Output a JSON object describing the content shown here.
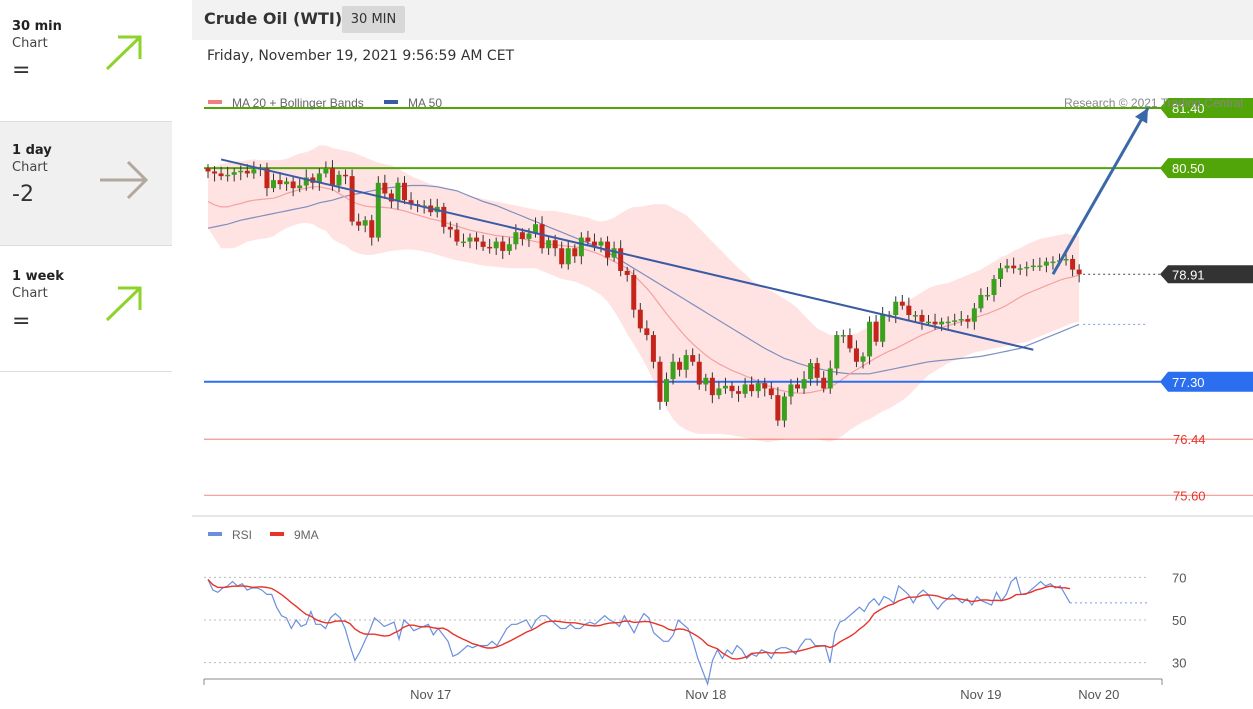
{
  "sidebar": {
    "items": [
      {
        "name": "30 min",
        "sub": "Chart",
        "score": "=",
        "direction": "up",
        "icon": "arrow-up-right-icon",
        "color": "#8ed32a"
      },
      {
        "name": "1 day",
        "sub": "Chart",
        "score": "-2",
        "direction": "flat",
        "icon": "arrow-right-icon",
        "color": "#b3a89e"
      },
      {
        "name": "1 week",
        "sub": "Chart",
        "score": "=",
        "direction": "up",
        "icon": "arrow-up-right-icon",
        "color": "#8ed32a"
      }
    ]
  },
  "header": {
    "title": "Crude Oil (WTI)",
    "interval": "30 MIN"
  },
  "date": "Friday, November 19, 2021 9:56:59 AM CET",
  "chart_data": {
    "type": "candlestick",
    "legend": [
      {
        "label": "MA 20 + Bollinger Bands",
        "color": "#f08080"
      },
      {
        "label": "MA 50",
        "color": "#3b5ba5"
      }
    ],
    "credit": "Research © 2021 Trading Central",
    "price_range": [
      75.35,
      81.7
    ],
    "levels": [
      {
        "value": 81.4,
        "label": "81.40",
        "kind": "resistance",
        "color": "#52a508"
      },
      {
        "value": 80.5,
        "label": "80.50",
        "kind": "resistance",
        "color": "#52a508"
      },
      {
        "value": 78.91,
        "label": "78.91",
        "kind": "last",
        "color": "#333333"
      },
      {
        "value": 77.3,
        "label": "77.30",
        "kind": "pivot",
        "color": "#2b6ff0"
      },
      {
        "value": 76.44,
        "label": "76.44",
        "kind": "support",
        "color": "#e8332a"
      },
      {
        "value": 75.6,
        "label": "75.60",
        "kind": "support",
        "color": "#e8332a"
      }
    ],
    "closes": [
      80.45,
      80.42,
      80.38,
      80.4,
      80.44,
      80.46,
      80.42,
      80.48,
      80.5,
      80.2,
      80.32,
      80.26,
      80.3,
      80.2,
      80.24,
      80.36,
      80.28,
      80.42,
      80.5,
      80.24,
      80.4,
      80.38,
      79.7,
      79.64,
      79.72,
      79.46,
      80.28,
      80.12,
      80.0,
      80.28,
      80.02,
      79.96,
      79.94,
      79.94,
      79.84,
      79.92,
      79.62,
      79.58,
      79.4,
      79.4,
      79.46,
      79.4,
      79.32,
      79.3,
      79.4,
      79.26,
      79.36,
      79.54,
      79.44,
      79.52,
      79.66,
      79.3,
      79.42,
      79.3,
      79.06,
      79.3,
      79.18,
      79.46,
      79.4,
      79.34,
      79.4,
      79.16,
      79.3,
      78.96,
      78.9,
      78.38,
      78.1,
      78.0,
      77.6,
      77.0,
      77.34,
      77.6,
      77.48,
      77.7,
      77.6,
      77.26,
      77.36,
      77.1,
      77.2,
      77.24,
      77.16,
      77.12,
      77.26,
      77.16,
      77.28,
      77.2,
      77.1,
      76.72,
      77.08,
      77.26,
      77.2,
      77.34,
      77.58,
      77.36,
      77.2,
      77.5,
      78.0,
      78.0,
      77.8,
      77.6,
      77.68,
      78.2,
      77.9,
      78.3,
      78.3,
      78.5,
      78.44,
      78.3,
      78.3,
      78.2,
      78.2,
      78.16,
      78.2,
      78.2,
      78.22,
      78.24,
      78.2,
      78.4,
      78.6,
      78.6,
      78.84,
      79.0,
      79.04,
      79.0,
      79.0,
      79.02,
      79.04,
      79.04,
      79.1,
      79.1,
      79.12,
      79.14,
      78.98,
      78.91
    ],
    "ma20": [
      80.0,
      79.95,
      79.92,
      79.92,
      79.95,
      79.97,
      80.0,
      80.02,
      80.03,
      80.04,
      80.05,
      80.08,
      80.12,
      80.15,
      80.18,
      80.2,
      80.22,
      80.22,
      80.2,
      80.18,
      80.12,
      80.06,
      80.0,
      79.96,
      79.93,
      79.92,
      79.92,
      79.91,
      79.9,
      79.88,
      79.86,
      79.83,
      79.8,
      79.77,
      79.74,
      79.72,
      79.69,
      79.66,
      79.63,
      79.6,
      79.57,
      79.55,
      79.53,
      79.51,
      79.49,
      79.48,
      79.47,
      79.46,
      79.44,
      79.42,
      79.4,
      79.38,
      79.36,
      79.35,
      79.34,
      79.33,
      79.32,
      79.3,
      79.27,
      79.24,
      79.2,
      79.15,
      79.1,
      79.05,
      79.0,
      78.9,
      78.8,
      78.7,
      78.58,
      78.45,
      78.32,
      78.2,
      78.08,
      77.97,
      77.87,
      77.78,
      77.7,
      77.63,
      77.57,
      77.52,
      77.47,
      77.43,
      77.39,
      77.35,
      77.3,
      77.26,
      77.22,
      77.18,
      77.16,
      77.14,
      77.13,
      77.13,
      77.14,
      77.16,
      77.18,
      77.22,
      77.28,
      77.35,
      77.42,
      77.48,
      77.54,
      77.6,
      77.66,
      77.71,
      77.76,
      77.8,
      77.85,
      77.9,
      77.95,
      78.0,
      78.04,
      78.08,
      78.11,
      78.14,
      78.17,
      78.2,
      78.23,
      78.26,
      78.29,
      78.32,
      78.36,
      78.4,
      78.45,
      78.51,
      78.57,
      78.62,
      78.66,
      78.7,
      78.74,
      78.78,
      78.82,
      78.85,
      78.87,
      78.9
    ],
    "bb_upper": [
      80.5,
      80.52,
      80.56,
      80.58,
      80.6,
      80.6,
      80.62,
      80.63,
      80.62,
      80.62,
      80.62,
      80.62,
      80.64,
      80.68,
      80.72,
      80.74,
      80.78,
      80.84,
      80.84,
      80.8,
      80.78,
      80.76,
      80.74,
      80.7,
      80.66,
      80.62,
      80.58,
      80.56,
      80.54,
      80.5,
      80.44,
      80.38,
      80.34,
      80.3,
      80.26,
      80.24,
      80.22,
      80.18,
      80.15,
      80.12,
      80.08,
      80.06,
      80.04,
      80.02,
      80.0,
      79.98,
      79.96,
      79.94,
      79.92,
      79.9,
      79.88,
      79.86,
      79.86,
      79.86,
      79.84,
      79.82,
      79.8,
      79.78,
      79.76,
      79.72,
      79.7,
      79.72,
      79.76,
      79.82,
      79.88,
      79.92,
      79.92,
      79.94,
      79.96,
      79.96,
      79.96,
      79.9,
      79.85,
      79.8,
      79.7,
      79.6,
      79.5,
      79.4,
      79.3,
      79.2,
      79.1,
      79.0,
      78.92,
      78.82,
      78.76,
      78.7,
      78.66,
      78.6,
      78.54,
      78.48,
      78.4,
      78.3,
      78.2,
      78.1,
      78.05,
      78.0,
      78.0,
      78.0,
      78.0,
      78.02,
      78.08,
      78.14,
      78.2,
      78.26,
      78.32,
      78.4,
      78.46,
      78.52,
      78.58,
      78.64,
      78.7,
      78.74,
      78.76,
      78.78,
      78.82,
      78.86,
      78.9,
      78.94,
      78.98,
      79.04,
      79.1,
      79.16,
      79.2,
      79.26,
      79.3,
      79.36,
      79.4,
      79.44,
      79.46,
      79.48,
      79.5,
      79.52,
      79.5,
      79.48
    ],
    "bb_lower": [
      79.6,
      79.45,
      79.3,
      79.3,
      79.3,
      79.35,
      79.4,
      79.42,
      79.44,
      79.45,
      79.48,
      79.55,
      79.6,
      79.64,
      79.67,
      79.68,
      79.66,
      79.6,
      79.56,
      79.44,
      79.38,
      79.34,
      79.26,
      79.22,
      79.2,
      79.2,
      79.22,
      79.24,
      79.26,
      79.27,
      79.28,
      79.28,
      79.27,
      79.25,
      79.23,
      79.2,
      79.17,
      79.14,
      79.12,
      79.1,
      79.08,
      79.06,
      79.04,
      79.03,
      79.02,
      79.01,
      79.0,
      79.0,
      79.0,
      79.0,
      79.0,
      78.96,
      78.92,
      78.88,
      78.84,
      78.82,
      78.8,
      78.76,
      78.72,
      78.66,
      78.6,
      78.5,
      78.36,
      78.2,
      78.02,
      77.86,
      77.7,
      77.52,
      77.32,
      77.1,
      76.9,
      76.74,
      76.64,
      76.58,
      76.54,
      76.52,
      76.52,
      76.52,
      76.52,
      76.51,
      76.5,
      76.48,
      76.46,
      76.44,
      76.42,
      76.4,
      76.4,
      76.42,
      76.44,
      76.44,
      76.44,
      76.44,
      76.44,
      76.44,
      76.42,
      76.4,
      76.44,
      76.5,
      76.58,
      76.64,
      76.7,
      76.74,
      76.8,
      76.86,
      76.9,
      76.96,
      77.02,
      77.1,
      77.2,
      77.3,
      77.4,
      77.46,
      77.52,
      77.58,
      77.62,
      77.66,
      77.7,
      77.74,
      77.76,
      77.78,
      77.8,
      77.82,
      77.84,
      77.86,
      77.88,
      77.9,
      77.94,
      77.98,
      78.02,
      78.06,
      78.1,
      78.14,
      78.18,
      78.2
    ],
    "ma50": [
      79.6,
      79.62,
      79.64,
      79.66,
      79.69,
      79.72,
      79.74,
      79.76,
      79.78,
      79.8,
      79.82,
      79.84,
      79.86,
      79.88,
      79.9,
      79.92,
      79.95,
      79.98,
      80.0,
      80.02,
      80.05,
      80.08,
      80.1,
      80.12,
      80.14,
      80.16,
      80.18,
      80.2,
      80.21,
      80.22,
      80.23,
      80.24,
      80.24,
      80.24,
      80.23,
      80.22,
      80.2,
      80.18,
      80.16,
      80.12,
      80.08,
      80.04,
      80.0,
      79.97,
      79.94,
      79.9,
      79.86,
      79.82,
      79.78,
      79.74,
      79.7,
      79.66,
      79.62,
      79.58,
      79.54,
      79.5,
      79.46,
      79.42,
      79.38,
      79.34,
      79.3,
      79.24,
      79.18,
      79.12,
      79.06,
      79.0,
      78.94,
      78.88,
      78.82,
      78.76,
      78.7,
      78.64,
      78.58,
      78.52,
      78.46,
      78.4,
      78.34,
      78.28,
      78.22,
      78.16,
      78.1,
      78.04,
      77.98,
      77.92,
      77.86,
      77.8,
      77.75,
      77.7,
      77.65,
      77.62,
      77.58,
      77.55,
      77.52,
      77.5,
      77.48,
      77.46,
      77.44,
      77.43,
      77.42,
      77.42,
      77.42,
      77.42,
      77.44,
      77.46,
      77.48,
      77.5,
      77.52,
      77.54,
      77.56,
      77.58,
      77.6,
      77.61,
      77.62,
      77.63,
      77.64,
      77.65,
      77.66,
      77.67,
      77.68,
      77.7,
      77.72,
      77.74,
      77.76,
      77.78,
      77.8,
      77.84,
      77.88,
      77.92,
      77.96,
      78.0,
      78.04,
      78.08,
      78.12,
      78.16
    ],
    "trendline": {
      "start": [
        2,
        80.63
      ],
      "end": [
        126,
        77.78
      ]
    },
    "projection": {
      "start": [
        129,
        78.91
      ],
      "end": [
        140,
        81.4
      ]
    },
    "rsi": {
      "ticks": [
        70,
        50,
        30
      ],
      "range": [
        20,
        80
      ],
      "legend": [
        {
          "label": "RSI",
          "color": "#6b8fde"
        },
        {
          "label": "9MA",
          "color": "#e8332a"
        }
      ],
      "values": [
        69,
        64,
        63,
        65,
        66,
        68,
        66,
        67,
        64,
        65,
        65,
        64,
        62,
        62,
        56,
        52,
        51,
        46,
        50,
        47,
        48,
        54,
        48,
        48,
        46,
        51,
        53,
        51,
        46,
        38,
        31,
        35,
        40,
        45,
        51,
        49,
        47,
        48,
        49,
        41,
        50,
        48,
        45,
        46,
        47,
        48,
        43,
        46,
        43,
        40,
        33,
        34,
        36,
        38,
        37,
        38,
        38,
        38,
        40,
        38,
        42,
        46,
        48,
        48,
        49,
        50,
        46,
        50,
        52,
        52,
        50,
        48,
        46,
        46,
        48,
        46,
        46,
        48,
        49,
        48,
        50,
        52,
        50,
        49,
        47,
        52,
        48,
        44,
        49,
        53,
        51,
        44,
        42,
        40,
        40,
        43,
        50,
        48,
        46,
        40,
        32,
        26,
        20,
        31,
        36,
        32,
        36,
        34,
        38,
        36,
        32,
        34,
        33,
        36,
        35,
        32,
        36,
        37,
        37,
        36,
        34,
        38,
        41,
        41,
        38,
        38,
        38,
        30,
        44,
        49,
        50,
        52,
        54,
        56,
        54,
        58,
        60,
        57,
        61,
        60,
        58,
        66,
        64,
        62,
        58,
        62,
        64,
        62,
        58,
        55,
        58,
        60,
        62,
        60,
        58,
        60,
        57,
        61,
        59,
        58,
        57,
        63,
        59,
        62,
        68,
        70,
        62,
        62,
        64,
        66,
        68,
        66,
        67,
        65,
        66,
        62,
        58
      ]
    },
    "x_ticks": [
      {
        "label": "Nov 17",
        "index": 34
      },
      {
        "label": "Nov 18",
        "index": 76
      },
      {
        "label": "Nov 19",
        "index": 118
      },
      {
        "label": "Nov 20",
        "index": 136
      }
    ]
  }
}
